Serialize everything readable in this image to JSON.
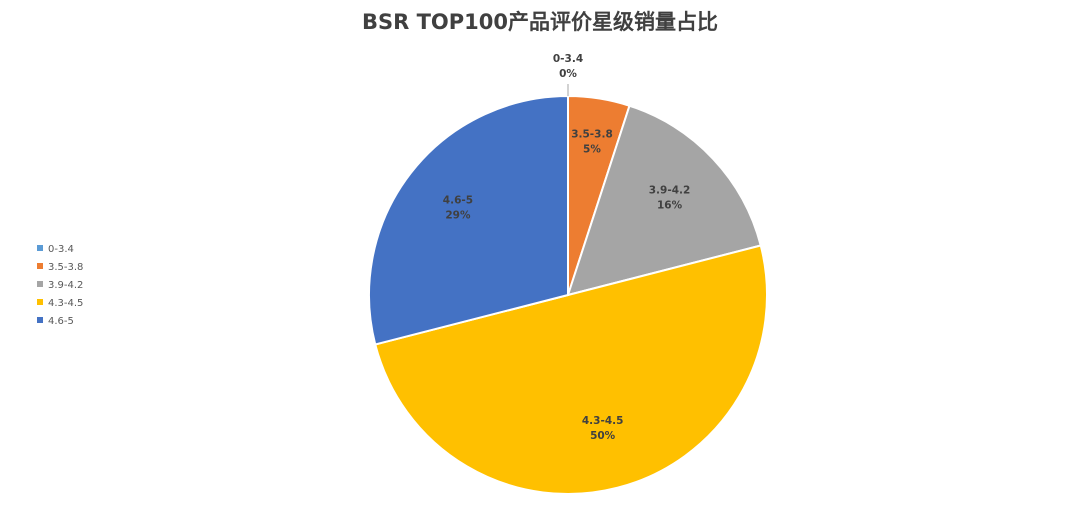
{
  "chart_data": {
    "type": "pie",
    "title": "BSR TOP100产品评价星级销量占比",
    "categories": [
      "0-3.4",
      "3.5-3.8",
      "3.9-4.2",
      "4.3-4.5",
      "4.6-5"
    ],
    "values": [
      0,
      5,
      16,
      50,
      29
    ],
    "data_labels": [
      "0%",
      "5%",
      "16%",
      "50%",
      "29%"
    ],
    "colors": [
      "#5B9BD5",
      "#ED7D31",
      "#A5A5A5",
      "#FFC000",
      "#4472C4"
    ],
    "legend_position": "left"
  }
}
